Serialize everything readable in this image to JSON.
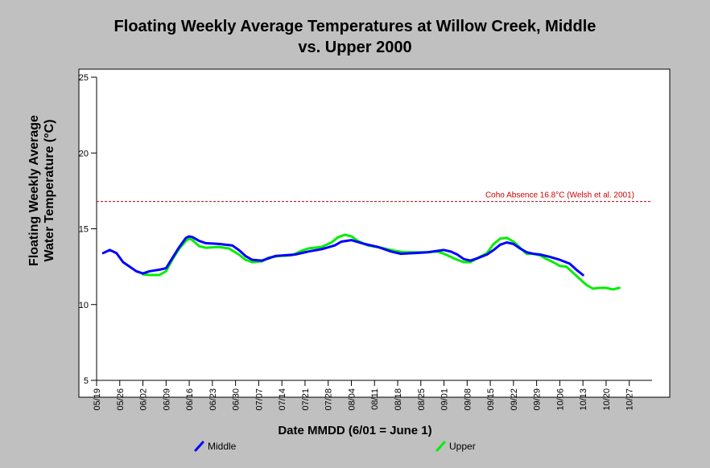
{
  "chart_data": {
    "type": "line",
    "title_line1": "Floating Weekly Average Temperatures at Willow Creek, Middle",
    "title_line2": "vs. Upper 2000",
    "xlabel": "Date MMDD (6/01 = June 1)",
    "ylabel_line1": "Floating Weekly Average",
    "ylabel_line2": "Water Temperature (°C)",
    "ylim": [
      5,
      25
    ],
    "yticks": [
      5,
      10,
      15,
      20,
      25
    ],
    "x_tick_labels": [
      "05/19",
      "05/26",
      "06/02",
      "06/09",
      "06/16",
      "06/23",
      "06/30",
      "07/07",
      "07/14",
      "07/21",
      "07/28",
      "08/04",
      "08/11",
      "08/18",
      "08/25",
      "09/01",
      "09/08",
      "09/15",
      "09/22",
      "09/29",
      "10/06",
      "10/13",
      "10/20",
      "10/27"
    ],
    "x_start": "05/19",
    "grid": false,
    "legend_position": "bottom",
    "reference_line": {
      "label": "Coho Absence 16.8°C (Welsh et al. 2001)",
      "value": 16.8,
      "color": "#cc0000"
    },
    "series": [
      {
        "name": "Middle",
        "color": "#0000ff",
        "points": [
          [
            "05/21",
            13.4
          ],
          [
            "05/23",
            13.6
          ],
          [
            "05/25",
            13.4
          ],
          [
            "05/27",
            12.8
          ],
          [
            "05/29",
            12.5
          ],
          [
            "05/31",
            12.2
          ],
          [
            "06/02",
            12.05
          ],
          [
            "06/04",
            12.2
          ],
          [
            "06/07",
            12.3
          ],
          [
            "06/09",
            12.4
          ],
          [
            "06/11",
            13.1
          ],
          [
            "06/13",
            13.8
          ],
          [
            "06/15",
            14.4
          ],
          [
            "06/16",
            14.5
          ],
          [
            "06/17",
            14.45
          ],
          [
            "06/19",
            14.2
          ],
          [
            "06/21",
            14.05
          ],
          [
            "06/25",
            14.0
          ],
          [
            "06/29",
            13.9
          ],
          [
            "07/01",
            13.6
          ],
          [
            "07/03",
            13.2
          ],
          [
            "07/05",
            12.95
          ],
          [
            "07/08",
            12.9
          ],
          [
            "07/12",
            13.2
          ],
          [
            "07/18",
            13.3
          ],
          [
            "07/22",
            13.5
          ],
          [
            "07/26",
            13.65
          ],
          [
            "07/30",
            13.9
          ],
          [
            "08/01",
            14.15
          ],
          [
            "08/04",
            14.25
          ],
          [
            "08/08",
            14.0
          ],
          [
            "08/12",
            13.8
          ],
          [
            "08/16",
            13.5
          ],
          [
            "08/19",
            13.35
          ],
          [
            "08/23",
            13.4
          ],
          [
            "08/27",
            13.45
          ],
          [
            "09/01",
            13.6
          ],
          [
            "09/03",
            13.5
          ],
          [
            "09/05",
            13.3
          ],
          [
            "09/07",
            13.0
          ],
          [
            "09/09",
            12.9
          ],
          [
            "09/11",
            13.05
          ],
          [
            "09/14",
            13.3
          ],
          [
            "09/16",
            13.6
          ],
          [
            "09/18",
            13.95
          ],
          [
            "09/20",
            14.1
          ],
          [
            "09/22",
            14.0
          ],
          [
            "09/24",
            13.7
          ],
          [
            "09/26",
            13.45
          ],
          [
            "09/28",
            13.35
          ],
          [
            "09/30",
            13.3
          ],
          [
            "10/03",
            13.15
          ],
          [
            "10/06",
            12.95
          ],
          [
            "10/09",
            12.7
          ],
          [
            "10/11",
            12.3
          ],
          [
            "10/13",
            11.95
          ]
        ]
      },
      {
        "name": "Upper",
        "color": "#00ee00",
        "points": [
          [
            "06/02",
            12.0
          ],
          [
            "06/04",
            11.95
          ],
          [
            "06/07",
            11.95
          ],
          [
            "06/09",
            12.2
          ],
          [
            "06/11",
            13.0
          ],
          [
            "06/13",
            13.7
          ],
          [
            "06/15",
            14.2
          ],
          [
            "06/16",
            14.35
          ],
          [
            "06/17",
            14.25
          ],
          [
            "06/19",
            13.85
          ],
          [
            "06/21",
            13.75
          ],
          [
            "06/25",
            13.8
          ],
          [
            "06/28",
            13.7
          ],
          [
            "07/01",
            13.3
          ],
          [
            "07/03",
            12.95
          ],
          [
            "07/05",
            12.8
          ],
          [
            "07/08",
            12.85
          ],
          [
            "07/10",
            13.1
          ],
          [
            "07/13",
            13.2
          ],
          [
            "07/17",
            13.25
          ],
          [
            "07/20",
            13.55
          ],
          [
            "07/22",
            13.7
          ],
          [
            "07/26",
            13.8
          ],
          [
            "07/29",
            14.1
          ],
          [
            "07/31",
            14.45
          ],
          [
            "08/02",
            14.6
          ],
          [
            "08/04",
            14.5
          ],
          [
            "08/06",
            14.2
          ],
          [
            "08/09",
            13.9
          ],
          [
            "08/13",
            13.75
          ],
          [
            "08/17",
            13.55
          ],
          [
            "08/20",
            13.45
          ],
          [
            "08/23",
            13.45
          ],
          [
            "08/27",
            13.45
          ],
          [
            "08/30",
            13.5
          ],
          [
            "09/01",
            13.35
          ],
          [
            "09/03",
            13.15
          ],
          [
            "09/05",
            12.95
          ],
          [
            "09/07",
            12.8
          ],
          [
            "09/09",
            12.8
          ],
          [
            "09/11",
            13.05
          ],
          [
            "09/14",
            13.4
          ],
          [
            "09/16",
            14.0
          ],
          [
            "09/18",
            14.35
          ],
          [
            "09/20",
            14.4
          ],
          [
            "09/22",
            14.15
          ],
          [
            "09/24",
            13.75
          ],
          [
            "09/26",
            13.35
          ],
          [
            "09/28",
            13.35
          ],
          [
            "09/30",
            13.25
          ],
          [
            "10/02",
            13.0
          ],
          [
            "10/04",
            12.8
          ],
          [
            "10/06",
            12.55
          ],
          [
            "10/08",
            12.5
          ],
          [
            "10/10",
            12.1
          ],
          [
            "10/12",
            11.7
          ],
          [
            "10/14",
            11.3
          ],
          [
            "10/16",
            11.05
          ],
          [
            "10/18",
            11.1
          ],
          [
            "10/20",
            11.1
          ],
          [
            "10/22",
            11.0
          ],
          [
            "10/24",
            11.1
          ]
        ]
      }
    ]
  }
}
